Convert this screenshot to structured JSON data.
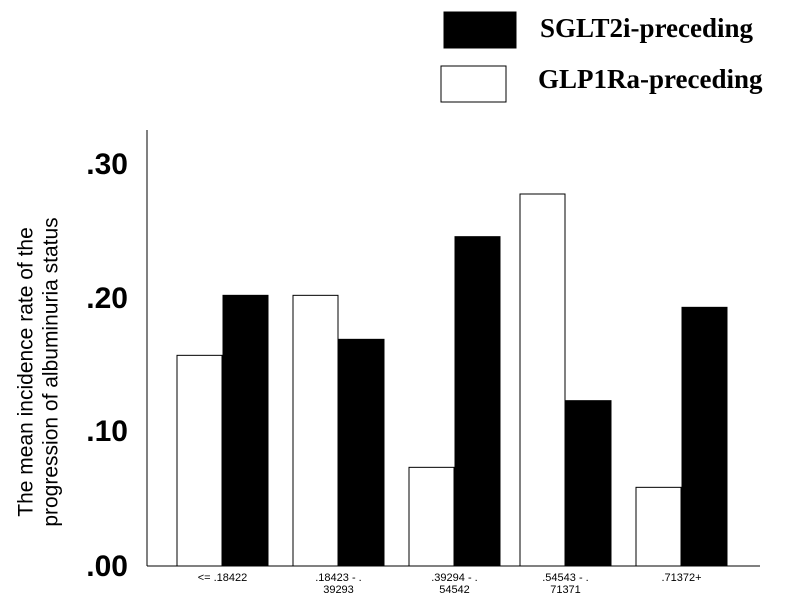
{
  "chart_data": {
    "type": "bar",
    "categories": [
      [
        "<= .18422"
      ],
      [
        ".18423 - .",
        "39293"
      ],
      [
        ".39294 - .",
        "54542"
      ],
      [
        ".54543 - .",
        "71371"
      ],
      [
        ".71372+"
      ]
    ],
    "series": [
      {
        "name": "SGLT2i-preceding",
        "color": "#000000",
        "values": [
          0.203,
          0.17,
          0.247,
          0.124,
          0.194
        ]
      },
      {
        "name": "GLP1Ra-preceding",
        "color": "#ffffff",
        "values": [
          0.158,
          0.203,
          0.074,
          0.279,
          0.059
        ]
      }
    ],
    "bar_order": [
      "GLP1Ra-preceding",
      "SGLT2i-preceding"
    ],
    "title": "",
    "xlabel": "",
    "ylabel": [
      "The mean incidence rate of the",
      "progression of albuminuria status"
    ],
    "ylim": [
      0,
      0.3
    ],
    "yticks": [
      {
        "value": 0,
        "label": ".00"
      },
      {
        "value": 0.1,
        "label": ".10"
      },
      {
        "value": 0.2,
        "label": ".20"
      },
      {
        "value": 0.3,
        "label": ".30"
      }
    ],
    "grid": false,
    "legend_position": "top-right",
    "legend": [
      {
        "name": "SGLT2i-preceding",
        "fill": "#000000"
      },
      {
        "name": "GLP1Ra-preceding",
        "fill": "#ffffff"
      }
    ]
  }
}
